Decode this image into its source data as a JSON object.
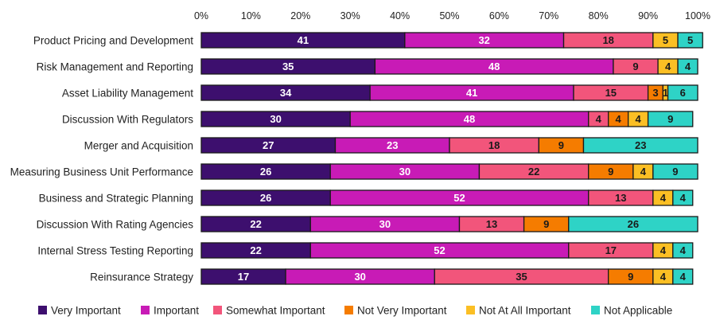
{
  "chart_data": {
    "type": "bar",
    "orientation": "horizontal",
    "stacked": true,
    "title": "",
    "xlabel": "",
    "ylabel": "",
    "xlim": [
      0,
      100
    ],
    "ticks": [
      "0%",
      "10%",
      "20%",
      "30%",
      "40%",
      "50%",
      "60%",
      "70%",
      "80%",
      "90%",
      "100%"
    ],
    "tick_position": "top",
    "grid": false,
    "legend_position": "bottom",
    "categories": [
      "Product Pricing and Development",
      "Risk Management and Reporting",
      "Asset Liability Management",
      "Discussion With Regulators",
      "Merger and Acquisition",
      "Measuring Business Unit Performance",
      "Business and Strategic Planning",
      "Discussion With Rating Agencies",
      "Internal Stress Testing Reporting",
      "Reinsurance Strategy"
    ],
    "series": [
      {
        "name": "Very Important",
        "color": "#3d0f6e",
        "label_color": "#ffffff",
        "values": [
          41,
          35,
          34,
          30,
          27,
          26,
          26,
          22,
          22,
          17
        ]
      },
      {
        "name": "Important",
        "color": "#c81bb6",
        "label_color": "#ffffff",
        "values": [
          32,
          48,
          41,
          48,
          23,
          30,
          52,
          30,
          52,
          30
        ]
      },
      {
        "name": "Somewhat Important",
        "color": "#f2557b",
        "label_color": "#1a1a1a",
        "values": [
          18,
          9,
          15,
          4,
          18,
          22,
          13,
          13,
          17,
          35
        ]
      },
      {
        "name": "Not Very Important",
        "color": "#f57c00",
        "label_color": "#1a1a1a",
        "values": [
          0,
          0,
          3,
          4,
          9,
          9,
          0,
          9,
          0,
          9
        ]
      },
      {
        "name": "Not At All Important",
        "color": "#fbbf24",
        "label_color": "#1a1a1a",
        "values": [
          5,
          4,
          1,
          4,
          0,
          4,
          4,
          0,
          4,
          4
        ]
      },
      {
        "name": "Not Applicable",
        "color": "#2ed3c6",
        "label_color": "#1a1a1a",
        "values": [
          5,
          4,
          6,
          9,
          23,
          9,
          4,
          26,
          4,
          4
        ]
      }
    ]
  }
}
